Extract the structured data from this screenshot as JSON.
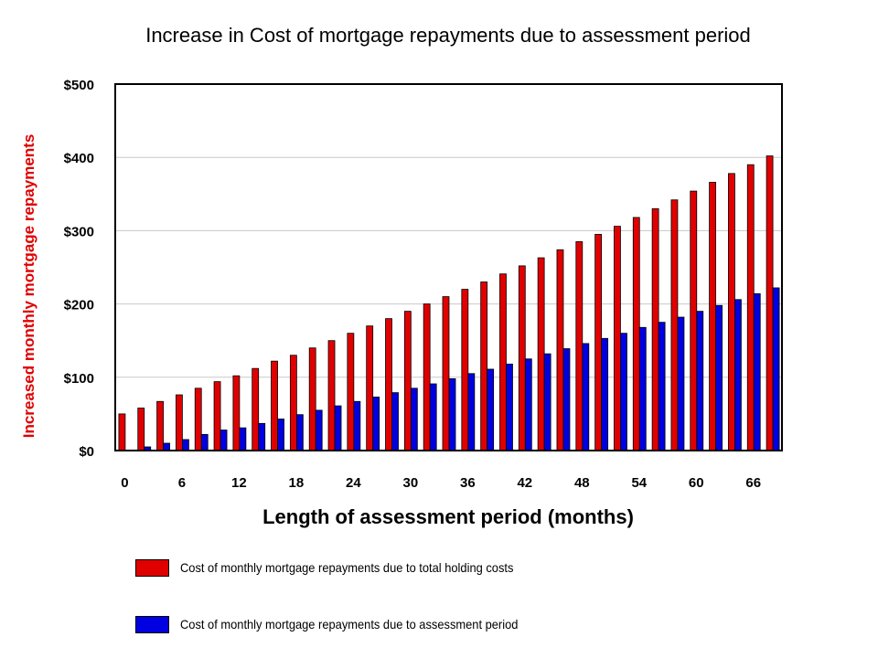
{
  "colors": {
    "total": "#e00000",
    "assessment": "#0000e0",
    "ylabel": "#e00000"
  },
  "chart_data": {
    "type": "bar",
    "title": "Increase in Cost of mortgage repayments due to assessment period",
    "xlabel": "Length of assessment period (months)",
    "ylabel": "Increased monthly mortgage repayments",
    "x_ticks": [
      "0",
      "6",
      "12",
      "18",
      "24",
      "30",
      "36",
      "42",
      "48",
      "54",
      "60",
      "66"
    ],
    "y_ticks": [
      "$0",
      "$100",
      "$200",
      "$300",
      "$400",
      "$500"
    ],
    "ylim": [
      0,
      500
    ],
    "grid": true,
    "legend_position": "bottom",
    "categories": [
      0,
      2,
      4,
      6,
      8,
      10,
      12,
      14,
      16,
      18,
      20,
      22,
      24,
      26,
      28,
      30,
      32,
      34,
      36,
      38,
      40,
      42,
      44,
      46,
      48,
      50,
      52,
      54,
      56,
      58,
      60,
      62,
      64,
      66,
      68
    ],
    "series": [
      {
        "name": "Cost of monthly mortgage repayments due to total holding costs",
        "color": "#e00000",
        "values": [
          50,
          58,
          67,
          76,
          85,
          94,
          102,
          112,
          122,
          130,
          140,
          150,
          160,
          170,
          180,
          190,
          200,
          210,
          220,
          230,
          241,
          252,
          263,
          274,
          285,
          295,
          306,
          318,
          330,
          342,
          354,
          366,
          378,
          390,
          402
        ]
      },
      {
        "name": "Cost of monthly mortgage repayments due to assessment period",
        "color": "#0000e0",
        "values": [
          0,
          5,
          10,
          15,
          22,
          28,
          31,
          37,
          43,
          49,
          55,
          61,
          67,
          73,
          79,
          85,
          91,
          98,
          105,
          111,
          118,
          125,
          132,
          139,
          146,
          153,
          160,
          168,
          175,
          182,
          190,
          198,
          206,
          214,
          222
        ]
      }
    ]
  }
}
